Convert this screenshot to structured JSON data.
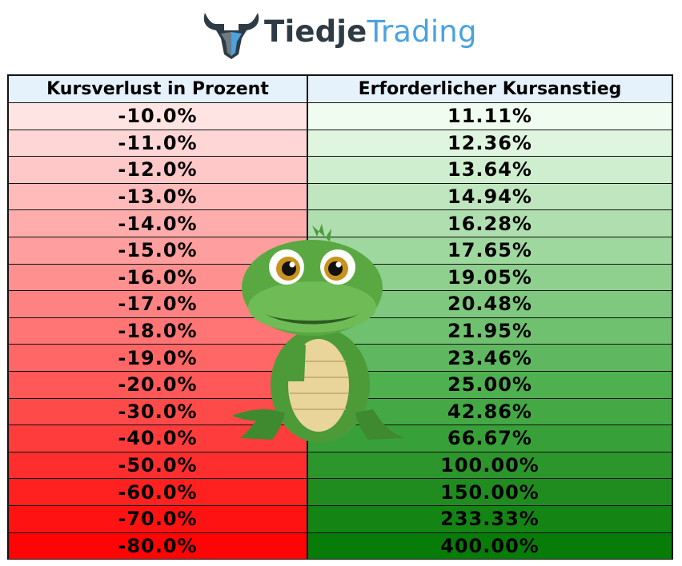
{
  "logo": {
    "word1": "Tiedje",
    "word2": "Trading",
    "icon": "bull-head-icon",
    "word1_color": "#2e3b44",
    "word2_color": "#4aa3df"
  },
  "table": {
    "headers": [
      "Kursverlust in Prozent",
      "Erforderlicher Kursanstieg"
    ],
    "rows": [
      [
        "-10.0%",
        "11.11%"
      ],
      [
        "-11.0%",
        "12.36%"
      ],
      [
        "-12.0%",
        "13.64%"
      ],
      [
        "-13.0%",
        "14.94%"
      ],
      [
        "-14.0%",
        "16.28%"
      ],
      [
        "-15.0%",
        "17.65%"
      ],
      [
        "-16.0%",
        "19.05%"
      ],
      [
        "-17.0%",
        "20.48%"
      ],
      [
        "-18.0%",
        "21.95%"
      ],
      [
        "-19.0%",
        "23.46%"
      ],
      [
        "-20.0%",
        "25.00%"
      ],
      [
        "-30.0%",
        "42.86%"
      ],
      [
        "-40.0%",
        "66.67%"
      ],
      [
        "-50.0%",
        "100.00%"
      ],
      [
        "-60.0%",
        "150.00%"
      ],
      [
        "-70.0%",
        "233.33%"
      ],
      [
        "-80.0%",
        "400.00%"
      ]
    ],
    "loss_colors": [
      "#ffe4e4",
      "#ffd6d6",
      "#ffc8c8",
      "#ffbaba",
      "#ffacac",
      "#ff9e9e",
      "#ff9090",
      "#ff8282",
      "#ff7474",
      "#ff6666",
      "#ff5858",
      "#ff4a4a",
      "#ff3c3c",
      "#ff2e2e",
      "#ff2020",
      "#ff1212",
      "#ff0404"
    ],
    "gain_colors": [
      "#effcef",
      "#dff5df",
      "#cfeecf",
      "#bfe6bf",
      "#afdfaf",
      "#9fd89f",
      "#8fd08f",
      "#7fc87f",
      "#6fc06f",
      "#5fb85f",
      "#4fb04f",
      "#44a844",
      "#38a038",
      "#2c962c",
      "#208c20",
      "#148414",
      "#087c08"
    ]
  },
  "mascot": {
    "icon": "crocodile-mascot-icon"
  },
  "chart_data": {
    "type": "table",
    "columns": [
      "Kursverlust in Prozent",
      "Erforderlicher Kursanstieg"
    ],
    "loss_percent": [
      -10.0,
      -11.0,
      -12.0,
      -13.0,
      -14.0,
      -15.0,
      -16.0,
      -17.0,
      -18.0,
      -19.0,
      -20.0,
      -30.0,
      -40.0,
      -50.0,
      -60.0,
      -70.0,
      -80.0
    ],
    "required_gain_percent": [
      11.11,
      12.36,
      13.64,
      14.94,
      16.28,
      17.65,
      19.05,
      20.48,
      21.95,
      23.46,
      25.0,
      42.86,
      66.67,
      100.0,
      150.0,
      233.33,
      400.0
    ]
  }
}
